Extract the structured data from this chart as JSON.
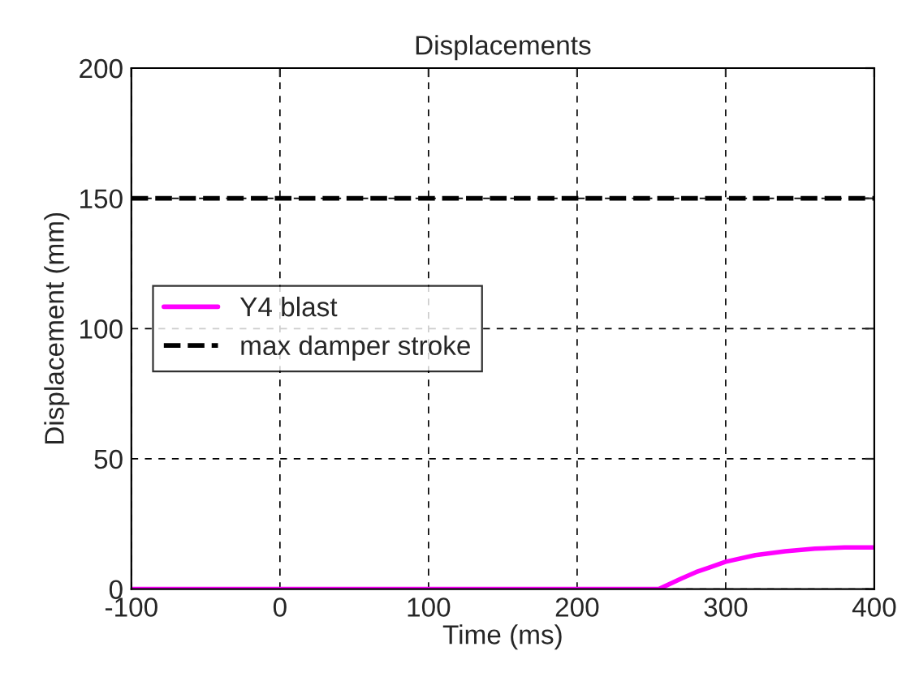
{
  "chart_data": {
    "type": "line",
    "title": "Displacements",
    "xlabel": "Time (ms)",
    "ylabel": "Displacement (mm)",
    "series": [
      {
        "name": "Y4 blast",
        "color": "#ff00ff",
        "line_style": "solid",
        "x": [
          -100,
          -50,
          -40,
          -20,
          0,
          100,
          200,
          255,
          270,
          280,
          290,
          300,
          320,
          340,
          360,
          380,
          400
        ],
        "values": [
          0,
          0,
          0,
          0,
          0,
          0,
          0,
          0,
          4,
          6.5,
          8.5,
          10.5,
          13,
          14.5,
          15.5,
          16,
          16
        ]
      },
      {
        "name": "max damper stroke",
        "color": "#000000",
        "line_style": "dashed",
        "x": [
          -100,
          400
        ],
        "values": [
          150,
          150
        ]
      }
    ],
    "xlim": [
      -100,
      400
    ],
    "xticks": [
      -100,
      0,
      100,
      200,
      300,
      400
    ],
    "ylim": [
      0,
      200
    ],
    "yticks": [
      0,
      50,
      100,
      150,
      200
    ],
    "grid": true,
    "legend": "left"
  }
}
